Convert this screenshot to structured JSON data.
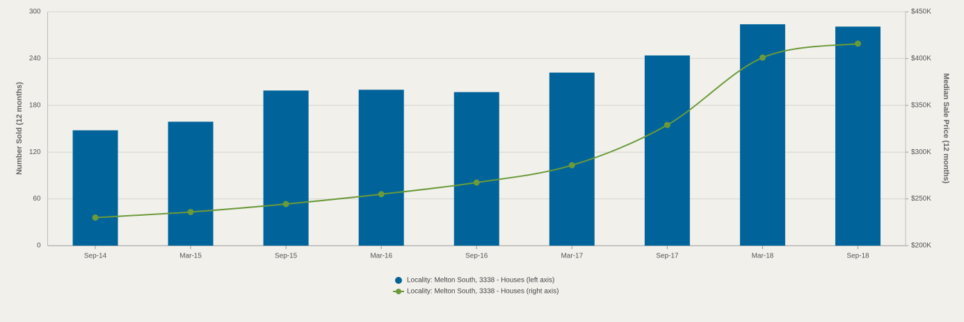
{
  "chart_data": {
    "type": "bar-line",
    "categories": [
      "Sep-14",
      "Mar-15",
      "Sep-15",
      "Mar-16",
      "Sep-16",
      "Mar-17",
      "Sep-17",
      "Mar-18",
      "Sep-18"
    ],
    "ylabel": "Number Sold (12 months)",
    "y2label": "Median Sale Price (12 months)",
    "ylim": [
      0,
      300
    ],
    "yticks": [
      0,
      60,
      120,
      180,
      240,
      300
    ],
    "y2lim": [
      200000,
      450000
    ],
    "y2ticks": [
      {
        "value": 200000,
        "label": "$200K"
      },
      {
        "value": 250000,
        "label": "$250K"
      },
      {
        "value": 300000,
        "label": "$300K"
      },
      {
        "value": 350000,
        "label": "$350K"
      },
      {
        "value": 400000,
        "label": "$400K"
      },
      {
        "value": 450000,
        "label": "$450K"
      }
    ],
    "grid": true,
    "legend": "bottom",
    "series": [
      {
        "name": "Locality: Melton South, 3338 - Houses (left axis)",
        "type": "bar",
        "color": "#00649a",
        "values": [
          148,
          159,
          199,
          200,
          197,
          222,
          244,
          284,
          281
        ]
      },
      {
        "name": "Locality: Melton South, 3338 - Houses (right axis)",
        "type": "line",
        "axis": "y2",
        "color": "#6b9a3a",
        "values": [
          230000,
          236000,
          244500,
          255000,
          267500,
          286000,
          329000,
          401000,
          416000
        ]
      }
    ]
  }
}
